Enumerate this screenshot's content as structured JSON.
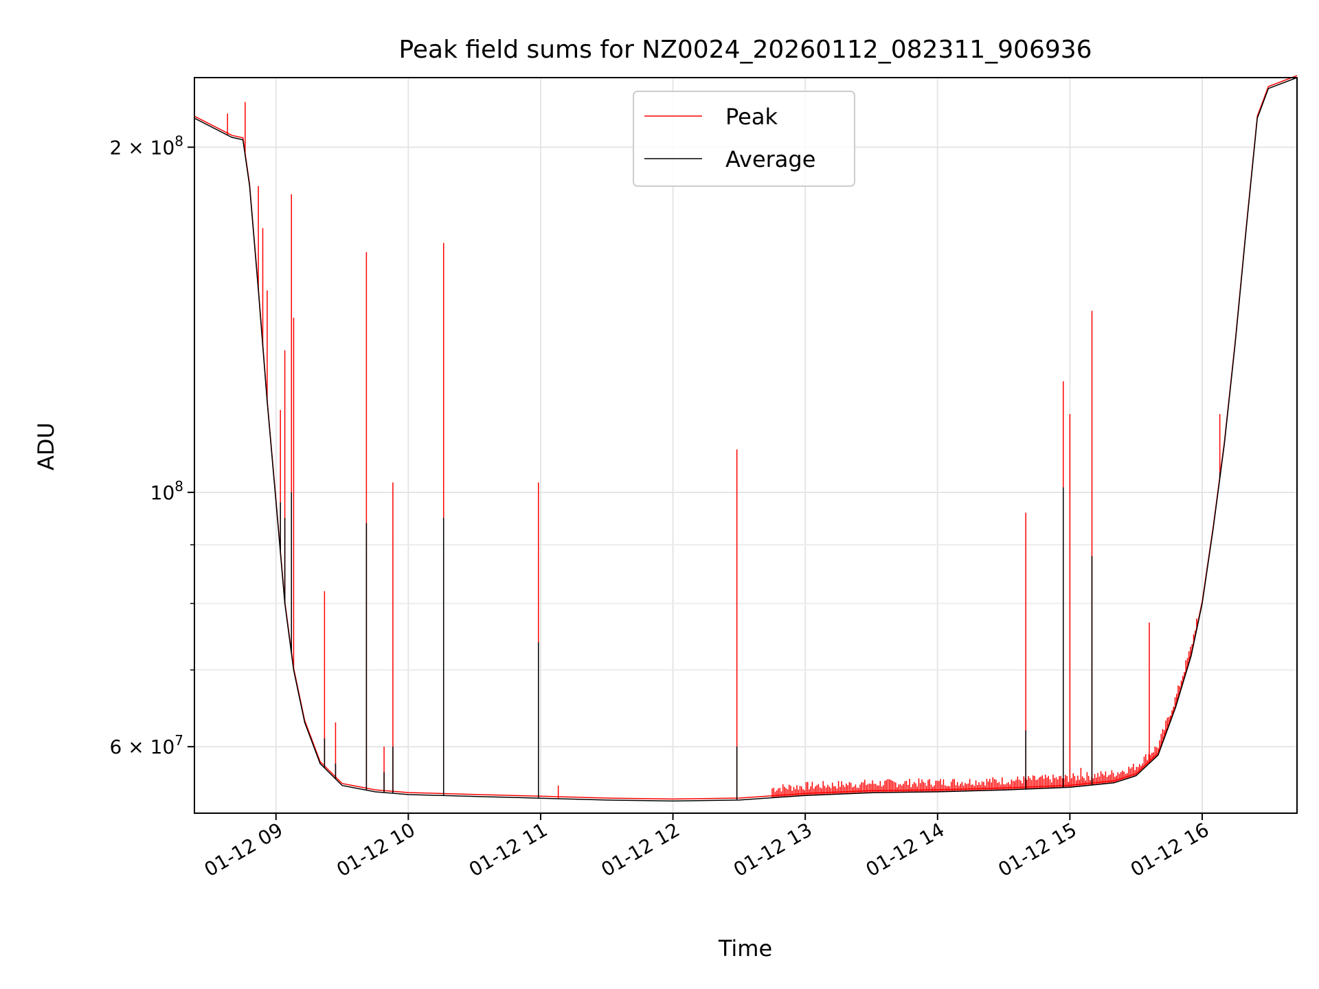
{
  "chart_data": {
    "type": "line",
    "title": "Peak field sums for NZ0024_20260112_082311_906936",
    "xlabel": "Time",
    "ylabel": "ADU",
    "yscale": "log",
    "grid": true,
    "legend_position": "upper center",
    "xlim": [
      "2026-01-12 08:23",
      "2026-01-12 16:43"
    ],
    "ylim": [
      52500000,
      230000000
    ],
    "x_ticks": [
      {
        "value": "2026-01-12 09:00",
        "label": "01-12 09"
      },
      {
        "value": "2026-01-12 10:00",
        "label": "01-12 10"
      },
      {
        "value": "2026-01-12 11:00",
        "label": "01-12 11"
      },
      {
        "value": "2026-01-12 12:00",
        "label": "01-12 12"
      },
      {
        "value": "2026-01-12 13:00",
        "label": "01-12 13"
      },
      {
        "value": "2026-01-12 14:00",
        "label": "01-12 14"
      },
      {
        "value": "2026-01-12 15:00",
        "label": "01-12 15"
      },
      {
        "value": "2026-01-12 16:00",
        "label": "01-12 16"
      }
    ],
    "y_major_ticks": [
      {
        "value": 60000000,
        "base": "6 × 10",
        "exp": "7"
      },
      {
        "value": 100000000,
        "base": "10",
        "exp": "8"
      },
      {
        "value": 200000000,
        "base": "2 × 10",
        "exp": "8"
      }
    ],
    "y_minor_ticks": [
      70000000,
      80000000,
      90000000
    ],
    "series": [
      {
        "name": "Average",
        "color": "#000000",
        "baseline": [
          [
            "2026-01-12 08:23",
            212000000
          ],
          [
            "2026-01-12 08:40",
            204000000
          ],
          [
            "2026-01-12 08:45",
            203000000
          ],
          [
            "2026-01-12 08:48",
            185000000
          ],
          [
            "2026-01-12 08:52",
            150000000
          ],
          [
            "2026-01-12 08:56",
            120000000
          ],
          [
            "2026-01-12 09:00",
            98000000
          ],
          [
            "2026-01-12 09:04",
            80000000
          ],
          [
            "2026-01-12 09:08",
            70000000
          ],
          [
            "2026-01-12 09:13",
            63000000
          ],
          [
            "2026-01-12 09:20",
            58000000
          ],
          [
            "2026-01-12 09:30",
            55500000
          ],
          [
            "2026-01-12 09:45",
            54800000
          ],
          [
            "2026-01-12 10:00",
            54500000
          ],
          [
            "2026-01-12 10:30",
            54300000
          ],
          [
            "2026-01-12 11:00",
            54100000
          ],
          [
            "2026-01-12 11:30",
            53900000
          ],
          [
            "2026-01-12 12:00",
            53800000
          ],
          [
            "2026-01-12 12:30",
            53900000
          ],
          [
            "2026-01-12 13:00",
            54400000
          ],
          [
            "2026-01-12 13:30",
            54700000
          ],
          [
            "2026-01-12 14:00",
            54800000
          ],
          [
            "2026-01-12 14:30",
            55000000
          ],
          [
            "2026-01-12 15:00",
            55300000
          ],
          [
            "2026-01-12 15:20",
            55800000
          ],
          [
            "2026-01-12 15:30",
            56600000
          ],
          [
            "2026-01-12 15:40",
            59000000
          ],
          [
            "2026-01-12 15:48",
            65000000
          ],
          [
            "2026-01-12 15:55",
            72000000
          ],
          [
            "2026-01-12 16:00",
            80000000
          ],
          [
            "2026-01-12 16:05",
            93000000
          ],
          [
            "2026-01-12 16:10",
            110000000
          ],
          [
            "2026-01-12 16:15",
            135000000
          ],
          [
            "2026-01-12 16:20",
            170000000
          ],
          [
            "2026-01-12 16:25",
            212000000
          ],
          [
            "2026-01-12 16:30",
            225000000
          ],
          [
            "2026-01-12 16:43",
            230000000
          ]
        ],
        "spikes": [
          [
            "2026-01-12 09:02",
            98000000
          ],
          [
            "2026-01-12 09:04",
            95000000
          ],
          [
            "2026-01-12 09:07",
            100000000
          ],
          [
            "2026-01-12 09:22",
            61000000
          ],
          [
            "2026-01-12 09:27",
            58000000
          ],
          [
            "2026-01-12 09:41",
            94000000
          ],
          [
            "2026-01-12 09:49",
            57000000
          ],
          [
            "2026-01-12 09:53",
            60000000
          ],
          [
            "2026-01-12 10:16",
            95000000
          ],
          [
            "2026-01-12 10:59",
            74000000
          ],
          [
            "2026-01-12 12:29",
            60000000
          ],
          [
            "2026-01-12 14:40",
            62000000
          ],
          [
            "2026-01-12 14:57",
            101000000
          ],
          [
            "2026-01-12 15:10",
            88000000
          ],
          [
            "2026-01-12 16:08",
            104000000
          ]
        ]
      },
      {
        "name": "Peak",
        "color": "#ff0000",
        "spikes": [
          [
            "2026-01-12 08:38",
            214000000
          ],
          [
            "2026-01-12 08:46",
            219000000
          ],
          [
            "2026-01-12 08:52",
            185000000
          ],
          [
            "2026-01-12 08:54",
            170000000
          ],
          [
            "2026-01-12 08:56",
            150000000
          ],
          [
            "2026-01-12 09:02",
            118000000
          ],
          [
            "2026-01-12 09:04",
            133000000
          ],
          [
            "2026-01-12 09:07",
            182000000
          ],
          [
            "2026-01-12 09:08",
            142000000
          ],
          [
            "2026-01-12 09:22",
            82000000
          ],
          [
            "2026-01-12 09:27",
            63000000
          ],
          [
            "2026-01-12 09:41",
            162000000
          ],
          [
            "2026-01-12 09:49",
            60000000
          ],
          [
            "2026-01-12 09:53",
            102000000
          ],
          [
            "2026-01-12 10:16",
            165000000
          ],
          [
            "2026-01-12 10:59",
            102000000
          ],
          [
            "2026-01-12 11:08",
            55500000
          ],
          [
            "2026-01-12 12:29",
            109000000
          ],
          [
            "2026-01-12 14:40",
            96000000
          ],
          [
            "2026-01-12 14:57",
            125000000
          ],
          [
            "2026-01-12 15:00",
            117000000
          ],
          [
            "2026-01-12 15:10",
            144000000
          ],
          [
            "2026-01-12 15:05",
            57500000
          ],
          [
            "2026-01-12 15:36",
            77000000
          ],
          [
            "2026-01-12 16:08",
            117000000
          ]
        ],
        "noise_start": "2026-01-12 12:45",
        "noise_end": "2026-01-12 15:58",
        "noise_peak": 56000000
      }
    ]
  }
}
